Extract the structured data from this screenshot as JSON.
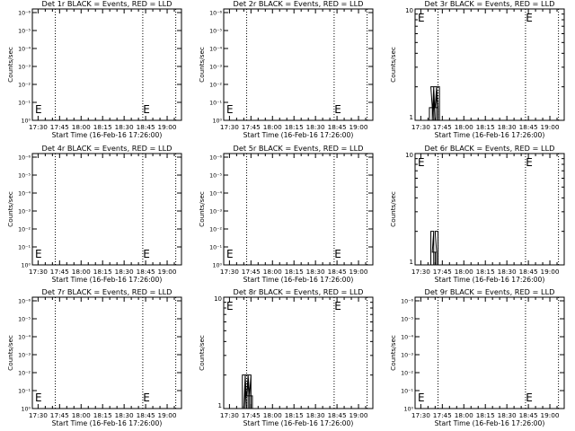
{
  "chart_data": [
    {
      "type": "line",
      "title": "Det 1r BLACK = Events, RED = LLD",
      "xlabel": "Start Time (16-Feb-16 17:26:00)",
      "ylabel": "Counts/sec",
      "x_ticks": [
        "17:30",
        "17:45",
        "18:00",
        "18:15",
        "18:30",
        "18:45",
        "19:00"
      ],
      "y_scale": "log",
      "y_ticks": [
        "10⁰",
        "10⁻¹",
        "10⁻²",
        "10⁻³",
        "10⁻⁴",
        "10⁻⁵",
        "10⁻⁶"
      ],
      "xlim": [
        "17:26",
        "19:10"
      ],
      "markers": [
        {
          "label": "E",
          "x": "17:26"
        },
        {
          "label": "E",
          "x": "18:42"
        }
      ],
      "vlines": [
        "17:42",
        "18:43",
        "19:06"
      ],
      "series": []
    },
    {
      "type": "line",
      "title": "Det 2r BLACK = Events, RED = LLD",
      "xlabel": "Start Time (16-Feb-16 17:26:00)",
      "ylabel": "Counts/sec",
      "x_ticks": [
        "17:30",
        "17:45",
        "18:00",
        "18:15",
        "18:30",
        "18:45",
        "19:00"
      ],
      "y_scale": "log",
      "y_ticks": [
        "10⁰",
        "10⁻¹",
        "10⁻²",
        "10⁻³",
        "10⁻⁴",
        "10⁻⁵",
        "10⁻⁶"
      ],
      "xlim": [
        "17:26",
        "19:10"
      ],
      "markers": [
        {
          "label": "E",
          "x": "17:26"
        },
        {
          "label": "E",
          "x": "18:42"
        }
      ],
      "vlines": [
        "17:42",
        "18:43",
        "19:06"
      ],
      "series": []
    },
    {
      "type": "line",
      "title": "Det 3r BLACK = Events, RED = LLD",
      "xlabel": "Start Time (16-Feb-16 17:26:00)",
      "ylabel": "Counts/sec",
      "x_ticks": [
        "17:30",
        "17:45",
        "18:00",
        "18:15",
        "18:30",
        "18:45",
        "19:00"
      ],
      "y_scale": "log",
      "y_ticks": [
        "1",
        "10"
      ],
      "xlim": [
        "17:26",
        "19:10"
      ],
      "markers": [
        {
          "label": "E",
          "x": "17:26"
        },
        {
          "label": "E",
          "x": "18:42"
        }
      ],
      "vlines": [
        "17:42",
        "18:43",
        "19:06"
      ],
      "series": [
        {
          "x": [
            "17:37",
            "17:38",
            "17:39",
            "17:40",
            "17:41",
            "17:42"
          ],
          "values": [
            1.3,
            2.0,
            1.0,
            2.0,
            1.3,
            2.0
          ]
        }
      ]
    },
    {
      "type": "line",
      "title": "Det 4r BLACK = Events, RED = LLD",
      "xlabel": "Start Time (16-Feb-16 17:26:00)",
      "ylabel": "Counts/sec",
      "x_ticks": [
        "17:30",
        "17:45",
        "18:00",
        "18:15",
        "18:30",
        "18:45",
        "19:00"
      ],
      "y_scale": "log",
      "y_ticks": [
        "10⁰",
        "10⁻¹",
        "10⁻²",
        "10⁻³",
        "10⁻⁴",
        "10⁻⁵",
        "10⁻⁶"
      ],
      "xlim": [
        "17:26",
        "19:10"
      ],
      "markers": [
        {
          "label": "E",
          "x": "17:26"
        },
        {
          "label": "E",
          "x": "18:42"
        }
      ],
      "vlines": [
        "17:42",
        "18:43",
        "19:06"
      ],
      "series": []
    },
    {
      "type": "line",
      "title": "Det 5r BLACK = Events, RED = LLD",
      "xlabel": "Start Time (16-Feb-16 17:26:00)",
      "ylabel": "Counts/sec",
      "x_ticks": [
        "17:30",
        "17:45",
        "18:00",
        "18:15",
        "18:30",
        "18:45",
        "19:00"
      ],
      "y_scale": "log",
      "y_ticks": [
        "10⁰",
        "10⁻¹",
        "10⁻²",
        "10⁻³",
        "10⁻⁴",
        "10⁻⁵",
        "10⁻⁶"
      ],
      "xlim": [
        "17:26",
        "19:10"
      ],
      "markers": [
        {
          "label": "E",
          "x": "17:26"
        },
        {
          "label": "E",
          "x": "18:42"
        }
      ],
      "vlines": [
        "17:42",
        "18:43",
        "19:06"
      ],
      "series": []
    },
    {
      "type": "line",
      "title": "Det 6r BLACK = Events, RED = LLD",
      "xlabel": "Start Time (16-Feb-16 17:26:00)",
      "ylabel": "Counts/sec",
      "x_ticks": [
        "17:30",
        "17:45",
        "18:00",
        "18:15",
        "18:30",
        "18:45",
        "19:00"
      ],
      "y_scale": "log",
      "y_ticks": [
        "1",
        "10"
      ],
      "xlim": [
        "17:26",
        "19:10"
      ],
      "markers": [
        {
          "label": "E",
          "x": "17:26"
        },
        {
          "label": "E",
          "x": "18:42"
        }
      ],
      "vlines": [
        "17:42",
        "18:43",
        "19:06"
      ],
      "series": [
        {
          "x": [
            "17:38",
            "17:39",
            "17:40",
            "17:41"
          ],
          "values": [
            2.0,
            1.3,
            1.3,
            2.0
          ]
        }
      ]
    },
    {
      "type": "line",
      "title": "Det 7r BLACK = Events, RED = LLD",
      "xlabel": "Start Time (16-Feb-16 17:26:00)",
      "ylabel": "Counts/sec",
      "x_ticks": [
        "17:30",
        "17:45",
        "18:00",
        "18:15",
        "18:30",
        "18:45",
        "19:00"
      ],
      "y_scale": "log",
      "y_ticks": [
        "10⁰",
        "10⁻¹",
        "10⁻²",
        "10⁻³",
        "10⁻⁴",
        "10⁻⁵",
        "10⁻⁶"
      ],
      "xlim": [
        "17:26",
        "19:10"
      ],
      "markers": [
        {
          "label": "E",
          "x": "17:26"
        },
        {
          "label": "E",
          "x": "18:42"
        }
      ],
      "vlines": [
        "17:42",
        "18:43",
        "19:06"
      ],
      "series": []
    },
    {
      "type": "line",
      "title": "Det 8r BLACK = Events, RED = LLD",
      "xlabel": "Start Time (16-Feb-16 17:26:00)",
      "ylabel": "Counts/sec",
      "x_ticks": [
        "17:30",
        "17:45",
        "18:00",
        "18:15",
        "18:30",
        "18:45",
        "19:00"
      ],
      "y_scale": "log",
      "y_ticks": [
        "1",
        "10"
      ],
      "xlim": [
        "17:26",
        "19:10"
      ],
      "markers": [
        {
          "label": "E",
          "x": "17:26"
        },
        {
          "label": "E",
          "x": "18:42"
        }
      ],
      "vlines": [
        "17:42",
        "18:43",
        "19:06"
      ],
      "series": [
        {
          "x": [
            "17:40",
            "17:41",
            "17:42",
            "17:43",
            "17:44",
            "17:45"
          ],
          "values": [
            2.0,
            1.0,
            2.0,
            1.3,
            2.0,
            1.3
          ]
        }
      ]
    },
    {
      "type": "line",
      "title": "Det 9r BLACK = Events, RED = LLD",
      "xlabel": "Start Time (16-Feb-16 17:26:00)",
      "ylabel": "Counts/sec",
      "x_ticks": [
        "17:30",
        "17:45",
        "18:00",
        "18:15",
        "18:30",
        "18:45",
        "19:00"
      ],
      "y_scale": "log",
      "y_ticks": [
        "10⁰",
        "10⁻¹",
        "10⁻²",
        "10⁻³",
        "10⁻⁴",
        "10⁻⁵",
        "10⁻⁶"
      ],
      "xlim": [
        "17:26",
        "19:10"
      ],
      "markers": [
        {
          "label": "E",
          "x": "17:26"
        },
        {
          "label": "E",
          "x": "18:42"
        }
      ],
      "vlines": [
        "17:42",
        "18:43",
        "19:06"
      ],
      "series": []
    }
  ]
}
